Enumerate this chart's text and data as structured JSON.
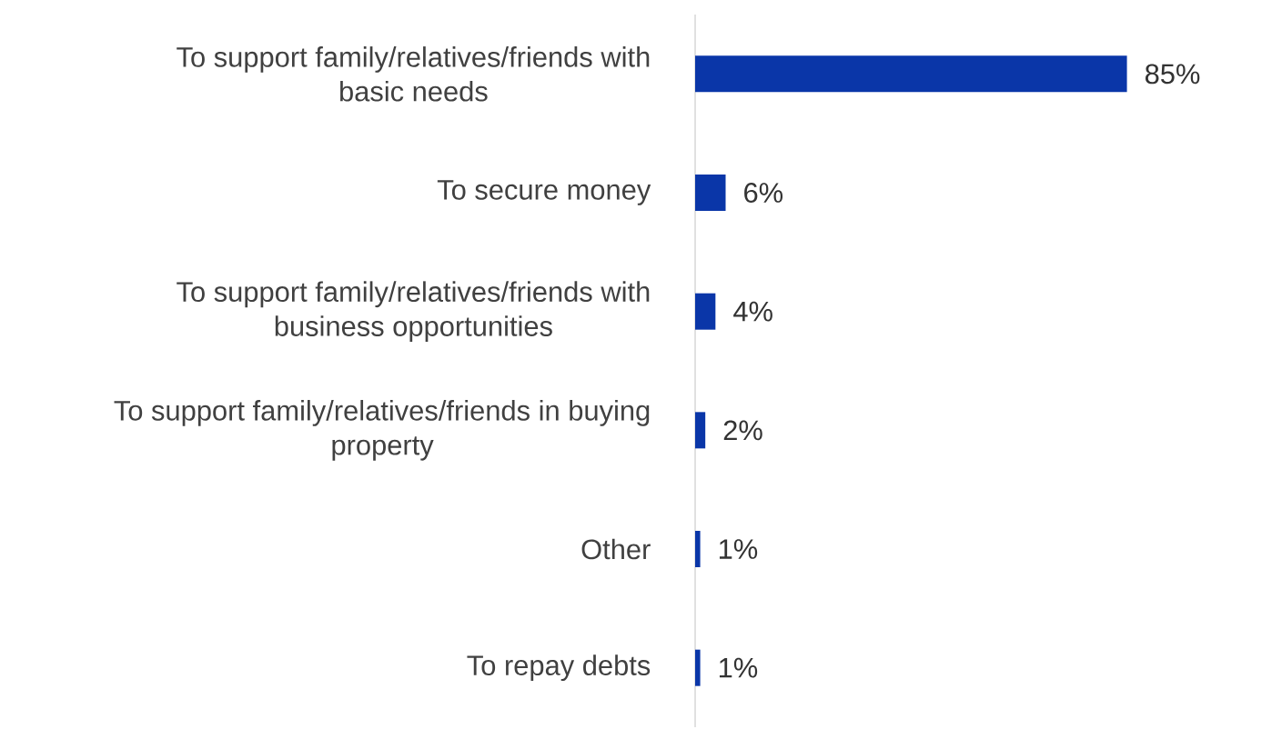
{
  "chart_data": {
    "type": "bar",
    "orientation": "horizontal",
    "categories": [
      "To support family/relatives/friends with basic needs",
      "To secure money",
      "To support family/relatives/friends with business opportunities",
      "To support family/relatives/friends in buying property",
      "Other",
      "To repay debts"
    ],
    "values": [
      85,
      6,
      4,
      2,
      1,
      1
    ],
    "value_labels": [
      "85%",
      "6%",
      "4%",
      "2%",
      "1%",
      "1%"
    ],
    "color": "#0a36a8"
  }
}
